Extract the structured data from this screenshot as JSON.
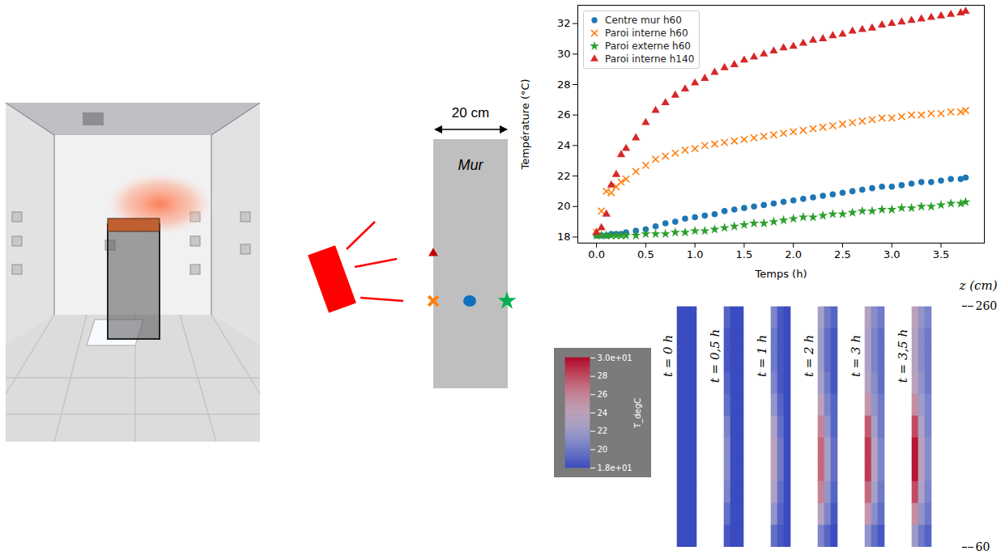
{
  "chart_data": [
    {
      "type": "scatter",
      "x_label": "Temps (h)",
      "y_label": "Température (°C)",
      "x": [
        0,
        0.05,
        0.1,
        0.15,
        0.2,
        0.25,
        0.3,
        0.4,
        0.5,
        0.6,
        0.7,
        0.8,
        0.9,
        1.0,
        1.1,
        1.2,
        1.3,
        1.4,
        1.5,
        1.6,
        1.7,
        1.8,
        1.9,
        2.0,
        2.1,
        2.2,
        2.3,
        2.4,
        2.5,
        2.6,
        2.7,
        2.8,
        2.9,
        3.0,
        3.1,
        3.2,
        3.3,
        3.4,
        3.5,
        3.6,
        3.7,
        3.75
      ],
      "xlim": [
        -0.19,
        3.94
      ],
      "xticks": [
        {
          "value": 0,
          "label": "0.0"
        },
        0.5,
        {
          "value": 1,
          "label": "1.0"
        },
        1.5,
        {
          "value": 2,
          "label": "2.0"
        },
        2.5,
        {
          "value": 3,
          "label": "3.0"
        },
        3.5
      ],
      "ylim": [
        17.6,
        33.2
      ],
      "yticks": [
        18,
        20,
        22,
        24,
        26,
        28,
        30,
        32
      ],
      "grid": false,
      "legend": "upper left",
      "series": [
        {
          "name": "Centre mur h60",
          "color": "#1f77b4",
          "marker": "circle",
          "values": [
            18.1,
            18.1,
            18.1,
            18.2,
            18.2,
            18.2,
            18.3,
            18.4,
            18.5,
            18.7,
            18.9,
            19.0,
            19.2,
            19.3,
            19.4,
            19.5,
            19.7,
            19.8,
            19.9,
            20.0,
            20.1,
            20.2,
            20.3,
            20.4,
            20.5,
            20.6,
            20.7,
            20.8,
            20.9,
            21.0,
            21.1,
            21.2,
            21.3,
            21.3,
            21.4,
            21.5,
            21.6,
            21.6,
            21.7,
            21.8,
            21.8,
            21.9
          ]
        },
        {
          "name": "Paroi interne h60",
          "color": "#ff7f0e",
          "marker": "x",
          "values": [
            18.3,
            19.7,
            21.0,
            20.9,
            21.3,
            21.6,
            21.8,
            22.3,
            22.7,
            23.1,
            23.3,
            23.5,
            23.7,
            23.8,
            24.0,
            24.1,
            24.2,
            24.3,
            24.4,
            24.5,
            24.6,
            24.7,
            24.8,
            24.9,
            25.0,
            25.1,
            25.2,
            25.3,
            25.4,
            25.5,
            25.6,
            25.7,
            25.8,
            25.8,
            25.9,
            26.0,
            26.0,
            26.1,
            26.1,
            26.2,
            26.2,
            26.3
          ]
        },
        {
          "name": "Paroi externe h60",
          "color": "#2ca02c",
          "marker": "star",
          "values": [
            18.1,
            18.1,
            18.1,
            18.1,
            18.1,
            18.1,
            18.1,
            18.1,
            18.2,
            18.2,
            18.2,
            18.3,
            18.3,
            18.4,
            18.4,
            18.5,
            18.6,
            18.7,
            18.8,
            18.9,
            18.9,
            19.0,
            19.1,
            19.2,
            19.3,
            19.3,
            19.4,
            19.5,
            19.5,
            19.6,
            19.7,
            19.7,
            19.8,
            19.8,
            19.9,
            19.9,
            20.0,
            20.0,
            20.1,
            20.2,
            20.2,
            20.3
          ]
        },
        {
          "name": "Paroi interne h140",
          "color": "#d62728",
          "marker": "triangle",
          "values": [
            18.3,
            18.6,
            19.5,
            21.4,
            22.1,
            23.4,
            23.8,
            24.5,
            25.5,
            26.3,
            26.8,
            27.3,
            27.7,
            28.1,
            28.4,
            28.8,
            29.1,
            29.3,
            29.6,
            29.8,
            30.0,
            30.2,
            30.4,
            30.5,
            30.7,
            30.9,
            31.0,
            31.2,
            31.3,
            31.5,
            31.6,
            31.7,
            31.9,
            32.0,
            32.1,
            32.2,
            32.3,
            32.4,
            32.5,
            32.6,
            32.7,
            32.8
          ]
        }
      ]
    },
    {
      "type": "heatmap",
      "z_label": "z (cm)",
      "zlim": [
        60,
        260
      ],
      "zticks": [
        60,
        260
      ],
      "z": [
        260,
        240,
        220,
        200,
        180,
        160,
        140,
        120,
        100,
        80,
        60
      ],
      "colorbar_label": "T_degC",
      "colorbar_range": [
        18,
        30
      ],
      "colorbar_ticks": [
        {
          "value": 18,
          "label": "1.8e+01"
        },
        20,
        22,
        24,
        26,
        28,
        {
          "value": 30,
          "label": "3.0e+01"
        }
      ],
      "panels": [
        {
          "label": "t = 0 h",
          "cells": [
            [
              18,
              18,
              18
            ],
            [
              18,
              18,
              18
            ],
            [
              18,
              18,
              18
            ],
            [
              18,
              18,
              18
            ],
            [
              18,
              18,
              18
            ],
            [
              18,
              18,
              18
            ],
            [
              18,
              18,
              18
            ],
            [
              18,
              18,
              18
            ],
            [
              18,
              18,
              18
            ],
            [
              18,
              18,
              18
            ],
            [
              18,
              18,
              18
            ]
          ]
        },
        {
          "label": "t = 0,5 h",
          "cells": [
            [
              19,
              18,
              18
            ],
            [
              18.5,
              18,
              18
            ],
            [
              18.5,
              18,
              18
            ],
            [
              19,
              18,
              18
            ],
            [
              19.5,
              18,
              18
            ],
            [
              20.5,
              18,
              18
            ],
            [
              21,
              18,
              18
            ],
            [
              21,
              18,
              18
            ],
            [
              20.5,
              18,
              18
            ],
            [
              19.5,
              18,
              18
            ],
            [
              18.5,
              18,
              18
            ]
          ]
        },
        {
          "label": "t = 1 h",
          "cells": [
            [
              20.5,
              18.5,
              18
            ],
            [
              20,
              18.5,
              18
            ],
            [
              20,
              18.5,
              18
            ],
            [
              20.5,
              18.5,
              18
            ],
            [
              21.5,
              19,
              18
            ],
            [
              23,
              19.5,
              18
            ],
            [
              24,
              20,
              18
            ],
            [
              24,
              20,
              18
            ],
            [
              23,
              19.5,
              18
            ],
            [
              21.5,
              19,
              18
            ],
            [
              19.5,
              18.5,
              18
            ]
          ]
        },
        {
          "label": "t = 2 h",
          "cells": [
            [
              22.5,
              20,
              19
            ],
            [
              22,
              19.5,
              18.5
            ],
            [
              22,
              19.5,
              18.5
            ],
            [
              22.5,
              20,
              18.5
            ],
            [
              24,
              20.5,
              19
            ],
            [
              26,
              21.5,
              19
            ],
            [
              27,
              22.5,
              19.5
            ],
            [
              27,
              22.5,
              19.5
            ],
            [
              26,
              21.5,
              19
            ],
            [
              23.5,
              20.5,
              18.5
            ],
            [
              20.5,
              19,
              18
            ]
          ]
        },
        {
          "label": "t = 3 h",
          "cells": [
            [
              23.5,
              21,
              20
            ],
            [
              23,
              20.5,
              19.5
            ],
            [
              23,
              20.5,
              19.5
            ],
            [
              23.5,
              21,
              19.5
            ],
            [
              25,
              21.5,
              20
            ],
            [
              27.5,
              22.5,
              20
            ],
            [
              28.5,
              23.5,
              20.5
            ],
            [
              28.5,
              23.5,
              20.5
            ],
            [
              27,
              22.5,
              20
            ],
            [
              25,
              21,
              19.5
            ],
            [
              21.5,
              19.5,
              18.5
            ]
          ]
        },
        {
          "label": "t = 3,5 h",
          "cells": [
            [
              24,
              21.5,
              20.5
            ],
            [
              23.5,
              21,
              20
            ],
            [
              23.5,
              21,
              20
            ],
            [
              24,
              21.5,
              20
            ],
            [
              25.5,
              22,
              20.5
            ],
            [
              28,
              23,
              20.5
            ],
            [
              29.5,
              24,
              21
            ],
            [
              29.5,
              24,
              21
            ],
            [
              28,
              23,
              20.5
            ],
            [
              25.5,
              21.5,
              20
            ],
            [
              22,
              20,
              19
            ]
          ]
        }
      ]
    }
  ],
  "diagram": {
    "width_label": "20 cm",
    "wall_label": "Mur"
  }
}
